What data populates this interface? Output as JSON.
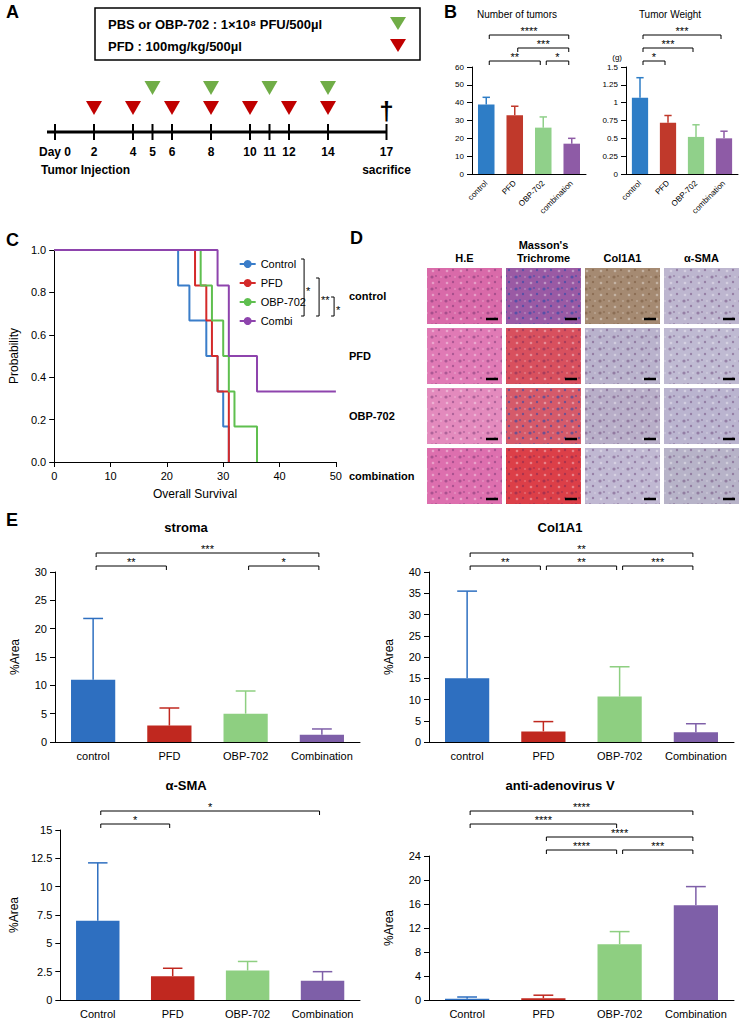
{
  "panel_labels": [
    "A",
    "B",
    "C",
    "D",
    "E"
  ],
  "timeline": {
    "series": [
      {
        "name": "PBS or OBP-702 : 1×10⁸ PFU/500µl",
        "color": "#70ad47",
        "days": [
          5,
          8,
          11,
          14
        ]
      },
      {
        "name": "PFD : 100mg/kg/500µl",
        "color": "#c00000",
        "days": [
          2,
          4,
          6,
          8,
          10,
          12,
          14
        ]
      }
    ],
    "ticks": [
      {
        "value": 0,
        "label": "Day 0"
      },
      2,
      4,
      5,
      6,
      8,
      10,
      11,
      12,
      14,
      17
    ],
    "start_label": "Tumor Injection",
    "end_day": 17,
    "end_label": "sacrifice",
    "end_mark": "†"
  },
  "histology": {
    "columns": [
      "H.E",
      "Masson's Trichrome",
      "Col1A1",
      "α-SMA"
    ],
    "rows": [
      "control",
      "PFD",
      "OBP-702",
      "combination"
    ]
  },
  "chart_data": [
    {
      "type": "bar",
      "title": "Number of tumors",
      "categories": [
        "control",
        "PFD",
        "OBP-702",
        "combination"
      ],
      "values": [
        39,
        33,
        26,
        17
      ],
      "errors": [
        4,
        5,
        6,
        3
      ],
      "colors": [
        "#2e7dc6",
        "#c0392b",
        "#90d08a",
        "#8e5ba6"
      ],
      "ylim": [
        0,
        60
      ],
      "yticks": [
        0,
        10,
        20,
        30,
        40,
        50,
        60
      ],
      "grid": false,
      "annotations": [
        {
          "from": "control",
          "to": "combination",
          "label": "****"
        },
        {
          "from": "PFD",
          "to": "combination",
          "label": "***"
        },
        {
          "from": "control",
          "to": "OBP-702",
          "label": "**"
        },
        {
          "from": "OBP-702",
          "to": "combination",
          "label": "*"
        }
      ]
    },
    {
      "type": "bar",
      "title": "Tumor Weight",
      "ylabel": "(g)",
      "categories": [
        "control",
        "PFD",
        "OBP-702",
        "combination"
      ],
      "values": [
        1.07,
        0.72,
        0.52,
        0.5
      ],
      "errors": [
        0.28,
        0.1,
        0.17,
        0.1
      ],
      "colors": [
        "#2e7dc6",
        "#c0392b",
        "#90d08a",
        "#8e5ba6"
      ],
      "ylim": [
        0,
        1.5
      ],
      "yticks": [
        0,
        0.25,
        0.5,
        0.75,
        1,
        1.25,
        1.5
      ],
      "grid": false,
      "annotations": [
        {
          "from": "control",
          "to": "combination",
          "label": "***"
        },
        {
          "from": "control",
          "to": "OBP-702",
          "label": "***"
        },
        {
          "from": "control",
          "to": "PFD",
          "label": "*"
        }
      ]
    },
    {
      "type": "step",
      "xlabel": "Overall Survival",
      "ylabel": "Probability",
      "series": [
        {
          "name": "Control",
          "color": "#3a7dc9",
          "x": [
            0,
            22,
            24,
            27,
            29,
            30,
            31
          ],
          "values": [
            1,
            0.833,
            0.667,
            0.5,
            0.333,
            0.167,
            0
          ]
        },
        {
          "name": "PFD",
          "color": "#d42a2a",
          "x": [
            0,
            25,
            27,
            28,
            29,
            31
          ],
          "values": [
            1,
            0.833,
            0.667,
            0.5,
            0.333,
            0
          ]
        },
        {
          "name": "OBP-702",
          "color": "#5fbf4f",
          "x": [
            0,
            26,
            28,
            30,
            31,
            32,
            36
          ],
          "values": [
            1,
            0.833,
            0.667,
            0.5,
            0.333,
            0.167,
            0
          ]
        },
        {
          "name": "Combi",
          "color": "#8e44ad",
          "x": [
            0,
            29,
            31,
            36,
            50
          ],
          "values": [
            1,
            0.833,
            0.5,
            0.333,
            0.333
          ]
        }
      ],
      "xlim": [
        0,
        50
      ],
      "xticks": [
        0,
        10,
        20,
        30,
        40,
        50
      ],
      "ylim": [
        0,
        1
      ],
      "yticks": [
        {
          "value": 0,
          "label": "0.0"
        },
        0.2,
        0.4,
        0.6,
        0.8,
        {
          "value": 1,
          "label": "1.0"
        }
      ],
      "grid": false,
      "legend": "upper right",
      "annotations": [
        {
          "from": "Control",
          "to": "Combi",
          "label": "*"
        },
        {
          "from": "PFD",
          "to": "Combi",
          "label": "**"
        },
        {
          "from": "OBP-702",
          "to": "Combi",
          "label": "*"
        }
      ]
    },
    {
      "type": "bar",
      "title": "stroma",
      "ylabel": "%Area",
      "categories": [
        "control",
        "PFD",
        "OBP-702",
        "Combination"
      ],
      "values": [
        11,
        2.9,
        5,
        1.3
      ],
      "errors": [
        10.8,
        3.1,
        4,
        1
      ],
      "colors": [
        "#2e6fc0",
        "#c0281f",
        "#8ecf81",
        "#7e5fa8"
      ],
      "ylim": [
        0,
        30
      ],
      "yticks": [
        0,
        5,
        10,
        15,
        20,
        25,
        30
      ],
      "grid": false,
      "annotations": [
        {
          "from": "control",
          "to": "Combination",
          "label": "***"
        },
        {
          "from": "control",
          "to": "PFD",
          "label": "**"
        },
        {
          "from": "OBP-702",
          "to": "Combination",
          "label": "*"
        }
      ]
    },
    {
      "type": "bar",
      "title": "Col1A1",
      "ylabel": "%Area",
      "categories": [
        "control",
        "PFD",
        "OBP-702",
        "Combination"
      ],
      "values": [
        15,
        2.5,
        10.7,
        2.3
      ],
      "errors": [
        20.5,
        2.3,
        7,
        2
      ],
      "colors": [
        "#2e6fc0",
        "#c0281f",
        "#8ecf81",
        "#7e5fa8"
      ],
      "ylim": [
        0,
        40
      ],
      "yticks": [
        0,
        5,
        10,
        15,
        20,
        25,
        30,
        35,
        40
      ],
      "grid": false,
      "annotations": [
        {
          "from": "control",
          "to": "Combination",
          "label": "**"
        },
        {
          "from": "control",
          "to": "PFD",
          "label": "**"
        },
        {
          "from": "PFD",
          "to": "OBP-702",
          "label": "**"
        },
        {
          "from": "OBP-702",
          "to": "Combination",
          "label": "***"
        }
      ]
    },
    {
      "type": "bar",
      "title": "α-SMA",
      "ylabel": "%Area",
      "categories": [
        "Control",
        "PFD",
        "OBP-702",
        "Combination"
      ],
      "values": [
        7,
        2.1,
        2.6,
        1.7
      ],
      "errors": [
        5.1,
        0.7,
        0.8,
        0.8
      ],
      "colors": [
        "#2e6fc0",
        "#c0281f",
        "#8ecf81",
        "#7e5fa8"
      ],
      "ylim": [
        0,
        15
      ],
      "yticks": [
        0,
        2.5,
        5,
        7.5,
        10,
        12.5,
        15
      ],
      "grid": false,
      "annotations": [
        {
          "from": "Control",
          "to": "Combination",
          "label": "*"
        },
        {
          "from": "Control",
          "to": "PFD",
          "label": "*"
        }
      ]
    },
    {
      "type": "bar",
      "title": "anti-adenovirus V",
      "ylabel": "%Area",
      "categories": [
        "Control",
        "PFD",
        "OBP-702",
        "Combination"
      ],
      "values": [
        0.2,
        0.3,
        9.3,
        15.8
      ],
      "errors": [
        0.3,
        0.5,
        2.1,
        3.1
      ],
      "colors": [
        "#2e6fc0",
        "#c0281f",
        "#8ecf81",
        "#7e5fa8"
      ],
      "ylim": [
        0,
        24
      ],
      "yticks": [
        0,
        4,
        8,
        12,
        16,
        20,
        24
      ],
      "grid": false,
      "annotations": [
        {
          "from": "Control",
          "to": "Combination",
          "label": "****"
        },
        {
          "from": "PFD",
          "to": "Combination",
          "label": "****"
        },
        {
          "from": "Control",
          "to": "OBP-702",
          "label": "****"
        },
        {
          "from": "PFD",
          "to": "OBP-702",
          "label": "****"
        },
        {
          "from": "OBP-702",
          "to": "Combination",
          "label": "***"
        }
      ]
    }
  ]
}
